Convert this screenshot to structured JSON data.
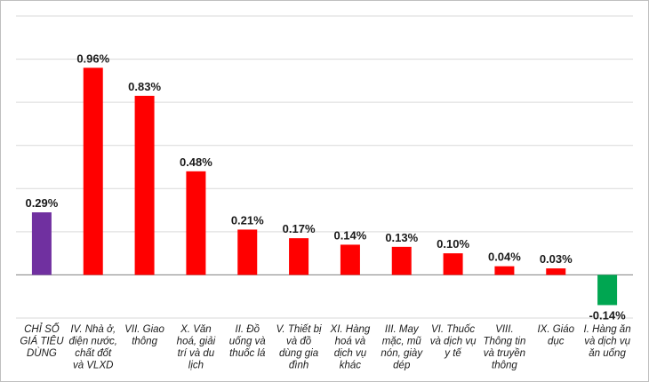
{
  "chart_data": {
    "type": "bar",
    "title": "",
    "xlabel": "",
    "ylabel": "",
    "grid": true,
    "legend": "none",
    "categories": [
      "CHỈ SỐ GIÁ TIÊU DÙNG",
      "IV. Nhà ở, điện nước, chất đốt và VLXD",
      "VII. Giao thông",
      "X. Văn hoá, giải trí và du lịch",
      "II. Đồ uống và thuốc lá",
      "V. Thiết bị và đồ dùng gia đình",
      "XI. Hàng hoá và dịch vụ khác",
      "III. May mặc, mũ nón, giày dép",
      "VI. Thuốc và dịch vụ y tế",
      "VIII. Thông tin và truyền thông",
      "IX. Giáo dục",
      "I. Hàng ăn và dịch vụ ăn uống"
    ],
    "category_lines": [
      [
        "CHỈ SỐ",
        "GIÁ TIÊU",
        "DÙNG"
      ],
      [
        "IV. Nhà ở,",
        "điện nước,",
        "chất đốt",
        "và VLXD"
      ],
      [
        "VII. Giao",
        "thông"
      ],
      [
        "X. Văn",
        "hoá, giải",
        "trí và du",
        "lịch"
      ],
      [
        "II. Đồ",
        "uống và",
        "thuốc lá"
      ],
      [
        "V. Thiết bị",
        "và đồ",
        "dùng gia",
        "đình"
      ],
      [
        "XI. Hàng",
        "hoá và",
        "dịch vụ",
        "khác"
      ],
      [
        "III. May",
        "mặc, mũ",
        "nón, giày",
        "dép"
      ],
      [
        "VI. Thuốc",
        "và dịch vụ",
        "y tế"
      ],
      [
        "VIII.",
        "Thông tin",
        "và truyền",
        "thông"
      ],
      [
        "IX. Giáo",
        "dục"
      ],
      [
        "I. Hàng ăn",
        "và dịch vụ",
        "ăn uống"
      ]
    ],
    "values": [
      0.29,
      0.96,
      0.83,
      0.48,
      0.21,
      0.17,
      0.14,
      0.13,
      0.1,
      0.04,
      0.03,
      -0.14
    ],
    "value_labels": [
      "0.29%",
      "0.96%",
      "0.83%",
      "0.48%",
      "0.21%",
      "0.17%",
      "0.14%",
      "0.13%",
      "0.10%",
      "0.04%",
      "0.03%",
      "-0.14%"
    ],
    "ylim": [
      -0.2,
      1.2
    ],
    "colors": {
      "index": "#7030a0",
      "positive": "#ff0000",
      "negative": "#00a651"
    }
  }
}
